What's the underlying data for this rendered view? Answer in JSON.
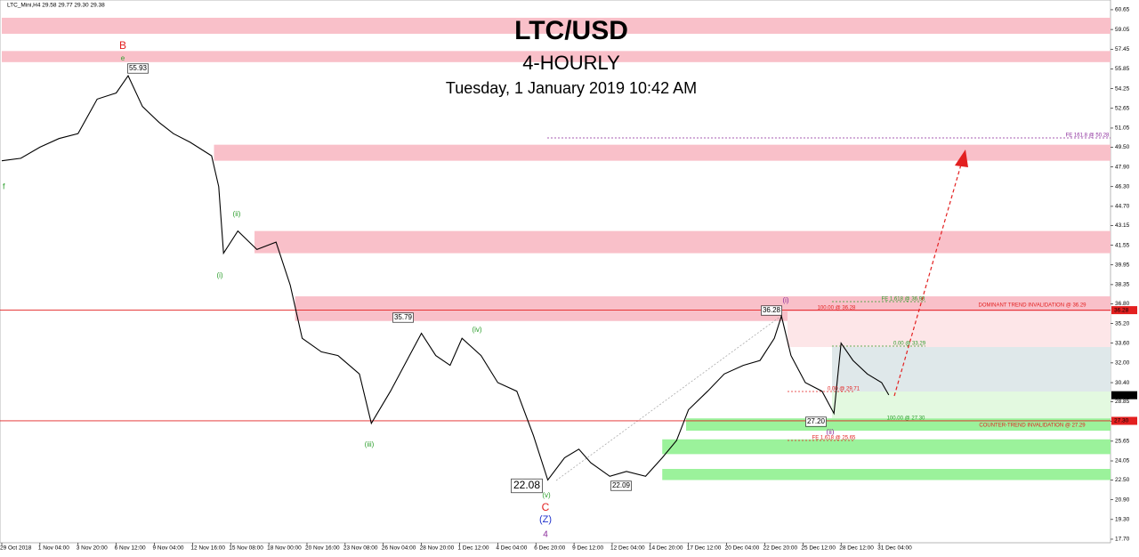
{
  "header": {
    "symbol": "LTC_Mini,H4 29.58 29.77 29.30 29.38"
  },
  "chart_data": {
    "type": "line",
    "title": "LTC/USD",
    "subtitle": "4-HOURLY",
    "date": "Tuesday, 1 January 2019 10:42 AM",
    "xlim": [
      0,
      465
    ],
    "xticks": [
      {
        "value": 0,
        "label": "29 Oct 2018"
      },
      {
        "value": 16,
        "label": "1 Nov 04:00"
      },
      {
        "value": 32,
        "label": "3 Nov 20:00"
      },
      {
        "value": 48,
        "label": "6 Nov 12:00"
      },
      {
        "value": 64,
        "label": "9 Nov 04:00"
      },
      {
        "value": 80,
        "label": "12 Nov 16:00"
      },
      {
        "value": 96,
        "label": "15 Nov 08:00"
      },
      {
        "value": 112,
        "label": "18 Nov 00:00"
      },
      {
        "value": 128,
        "label": "20 Nov 16:00"
      },
      {
        "value": 144,
        "label": "23 Nov 08:00"
      },
      {
        "value": 160,
        "label": "26 Nov 04:00"
      },
      {
        "value": 176,
        "label": "28 Nov 20:00"
      },
      {
        "value": 192,
        "label": "1 Dec 12:00"
      },
      {
        "value": 208,
        "label": "4 Dec 04:00"
      },
      {
        "value": 224,
        "label": "6 Dec 20:00"
      },
      {
        "value": 240,
        "label": "9 Dec 12:00"
      },
      {
        "value": 256,
        "label": "12 Dec 04:00"
      },
      {
        "value": 272,
        "label": "14 Dec 20:00"
      },
      {
        "value": 288,
        "label": "17 Dec 12:00"
      },
      {
        "value": 304,
        "label": "20 Dec 04:00"
      },
      {
        "value": 320,
        "label": "22 Dec 20:00"
      },
      {
        "value": 336,
        "label": "25 Dec 12:00"
      },
      {
        "value": 352,
        "label": "28 Dec 12:00"
      },
      {
        "value": 368,
        "label": "31 Dec 04:00"
      }
    ],
    "ylim": [
      17.41,
      61.44
    ],
    "yticks": [
      60.65,
      59.05,
      57.45,
      55.85,
      54.25,
      52.65,
      51.05,
      {
        "value": 49.5,
        "label": "49.50"
      },
      {
        "value": 47.9,
        "label": "47.90"
      },
      {
        "value": 46.3,
        "label": "46.30"
      },
      {
        "value": 44.7,
        "label": "44.70"
      },
      43.15,
      41.55,
      39.95,
      38.35,
      {
        "value": 36.8,
        "label": "36.80"
      },
      {
        "value": 35.2,
        "label": "35.20"
      },
      {
        "value": 33.6,
        "label": "33.60"
      },
      {
        "value": 32,
        "label": "32.00"
      },
      {
        "value": 30.4,
        "label": "30.40"
      },
      28.85,
      27.25,
      25.65,
      24.05,
      {
        "value": 22.5,
        "label": "22.50"
      },
      {
        "value": 20.9,
        "label": "20.90"
      },
      {
        "value": 19.3,
        "label": "19.30"
      },
      {
        "value": 17.7,
        "label": "17.70"
      }
    ],
    "series": [
      {
        "name": "LTC_Mini,H4",
        "color": "#000000",
        "x": [
          0,
          8,
          16,
          24,
          32,
          40,
          48,
          53,
          59,
          66,
          72,
          79,
          88,
          91,
          93,
          99,
          107,
          115,
          121,
          126,
          134,
          141,
          150,
          155,
          163,
          171,
          176,
          182,
          188,
          193,
          201,
          208,
          216,
          223,
          229,
          236,
          242,
          247,
          255,
          262,
          270,
          277,
          283,
          288,
          296,
          303,
          311,
          318,
          324,
          327,
          331,
          337,
          344,
          349,
          352,
          357,
          363,
          369,
          372
        ],
        "values": [
          48.4,
          48.6,
          49.5,
          50.2,
          50.6,
          53.4,
          53.9,
          55.3,
          52.8,
          51.5,
          50.6,
          49.9,
          48.8,
          46.3,
          40.9,
          42.7,
          41.2,
          41.8,
          38.3,
          34.0,
          32.9,
          32.6,
          31.1,
          27.1,
          29.7,
          32.6,
          34.4,
          32.6,
          31.8,
          34.0,
          32.6,
          30.4,
          29.7,
          26.1,
          22.5,
          24.3,
          25.0,
          23.9,
          22.8,
          23.2,
          22.8,
          24.3,
          25.7,
          28.2,
          29.7,
          31.1,
          31.8,
          32.2,
          34.0,
          35.8,
          32.6,
          30.4,
          29.7,
          27.9,
          33.6,
          32.2,
          31.1,
          30.4,
          29.4
        ]
      }
    ],
    "zones": [
      {
        "low": 58.7,
        "high": 60.0,
        "start": 0,
        "color": "#f9c0c9"
      },
      {
        "low": 56.4,
        "high": 57.3,
        "start": 0,
        "color": "#f9c0c9"
      },
      {
        "low": 48.4,
        "high": 49.7,
        "start": 89,
        "color": "#f9c0c9"
      },
      {
        "low": 40.9,
        "high": 42.7,
        "start": 106,
        "color": "#f9c0c9"
      },
      {
        "low": 35.4,
        "high": 37.4,
        "start": 123,
        "color": "#f9c0c9"
      },
      {
        "low": 26.5,
        "high": 27.5,
        "start": 287,
        "color": "#9bf29b"
      },
      {
        "low": 24.6,
        "high": 25.8,
        "start": 277,
        "color": "#9bf29b"
      },
      {
        "low": 22.5,
        "high": 23.4,
        "start": 277,
        "color": "#9bf29b"
      }
    ],
    "price_tags": [
      {
        "value": 36.28,
        "label": "36.28",
        "color": "#e32020"
      },
      {
        "value": 29.38,
        "label": "29.38",
        "color": "#000000"
      },
      {
        "value": 27.3,
        "label": "27.30",
        "color": "#e32020"
      }
    ],
    "annotations": [
      {
        "text": "B",
        "color": "#e32020"
      },
      {
        "text": "e",
        "color": "#2a9d2a"
      },
      {
        "text": "55.93",
        "color": "#000000"
      },
      {
        "text": "f",
        "color": "#2a9d2a"
      },
      {
        "text": "(ii)",
        "color": "#2a9d2a"
      },
      {
        "text": "(i)",
        "color": "#2a9d2a"
      },
      {
        "text": "35.79",
        "color": "#000000"
      },
      {
        "text": "(iv)",
        "color": "#2a9d2a"
      },
      {
        "text": "(iii)",
        "color": "#2a9d2a"
      },
      {
        "text": "22.08",
        "color": "#000000"
      },
      {
        "text": "(v)",
        "color": "#2a9d2a"
      },
      {
        "text": "C",
        "color": "#e32020"
      },
      {
        "text": "(Z)",
        "color": "#2233cc"
      },
      {
        "text": "4",
        "color": "#8a2a9a"
      },
      {
        "text": "22.09",
        "color": "#000000"
      },
      {
        "text": "(i)",
        "color": "#8a2a9a"
      },
      {
        "text": "36.28",
        "color": "#000000"
      },
      {
        "text": "27.20",
        "color": "#000000"
      },
      {
        "text": "(ii)",
        "color": "#8a2a9a"
      },
      {
        "text": "FE 161.8 @ 50.28",
        "color": "#8a2a9a"
      },
      {
        "text": "FE 1.618 @ 36.93",
        "color": "#2a9d2a"
      },
      {
        "text": "100.00 @ 36.28",
        "color": "#e32020"
      },
      {
        "text": "DOMINANT TREND INVALIDATION @ 36.29",
        "color": "#e32020"
      },
      {
        "text": "0.00 @ 33.29",
        "color": "#2a9d2a"
      },
      {
        "text": "0.00 @ 29.71",
        "color": "#e32020"
      },
      {
        "text": "100.00 @ 27.30",
        "color": "#2a9d2a"
      },
      {
        "text": "COUNTER-TREND INVALIDATION @ 27.29",
        "color": "#e32020"
      },
      {
        "text": "FE 1.618 @ 25.65",
        "color": "#e32020"
      }
    ]
  }
}
